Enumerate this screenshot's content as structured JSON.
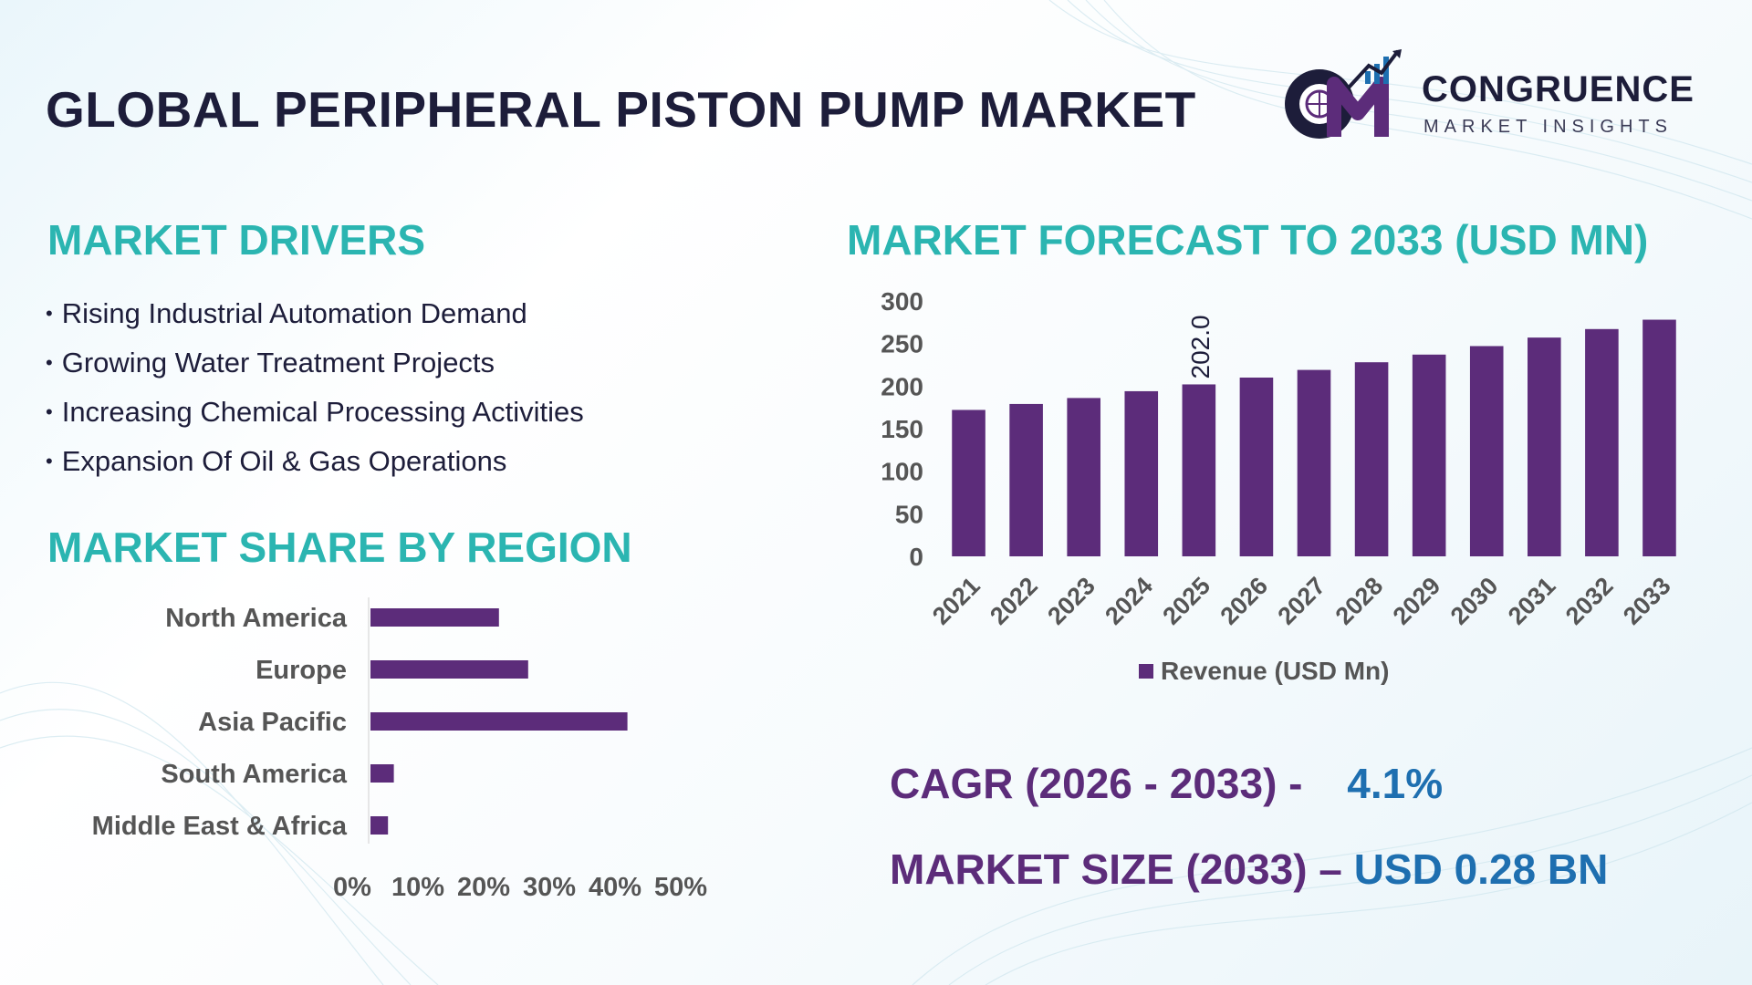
{
  "title": "GLOBAL PERIPHERAL PISTON PUMP MARKET",
  "logo": {
    "word": "CONGRUENCE",
    "subtitle": "MARKET INSIGHTS",
    "letters": "CM"
  },
  "drivers": {
    "heading": "MARKET DRIVERS",
    "items": [
      "Rising Industrial Automation Demand",
      "Growing Water Treatment Projects",
      "Increasing Chemical Processing Activities",
      "Expansion Of Oil & Gas Operations"
    ]
  },
  "region_heading": "MARKET SHARE BY REGION",
  "forecast_heading": "MARKET FORECAST TO 2033 (USD MN)",
  "kpis": {
    "cagr_label": "CAGR (2026 - 2033) -",
    "cagr_value": "4.1%",
    "size_label": "MARKET SIZE (2033) –",
    "size_value": "USD 0.28 BN"
  },
  "colors": {
    "bar": "#5c2c7a",
    "accent": "#2bb5b1",
    "value_blue": "#1e6fb0",
    "title_dark": "#1d1d3a"
  },
  "chart_data": [
    {
      "type": "bar",
      "orientation": "vertical",
      "title": "MARKET FORECAST TO 2033 (USD MN)",
      "categories": [
        "2021",
        "2022",
        "2023",
        "2024",
        "2025",
        "2026",
        "2027",
        "2028",
        "2029",
        "2030",
        "2031",
        "2032",
        "2033"
      ],
      "series": [
        {
          "name": "Revenue (USD Mn)",
          "values": [
            172,
            179,
            186,
            194,
            202,
            210,
            219,
            228,
            237,
            247,
            257,
            267,
            278
          ]
        }
      ],
      "data_labels": [
        {
          "index": 4,
          "text": "202.0"
        }
      ],
      "ylim": [
        0,
        300
      ],
      "yticks": [
        0,
        50,
        100,
        150,
        200,
        250,
        300
      ],
      "legend": "bottom",
      "grid": false
    },
    {
      "type": "bar",
      "orientation": "horizontal",
      "title": "MARKET SHARE BY REGION",
      "categories": [
        "North America",
        "Europe",
        "Asia Pacific",
        "South America",
        "Middle East & Africa"
      ],
      "values": [
        22,
        27,
        44,
        4,
        3
      ],
      "xlim": [
        0,
        50
      ],
      "xticks": [
        "0%",
        "10%",
        "20%",
        "30%",
        "40%",
        "50%"
      ],
      "grid": false
    }
  ]
}
